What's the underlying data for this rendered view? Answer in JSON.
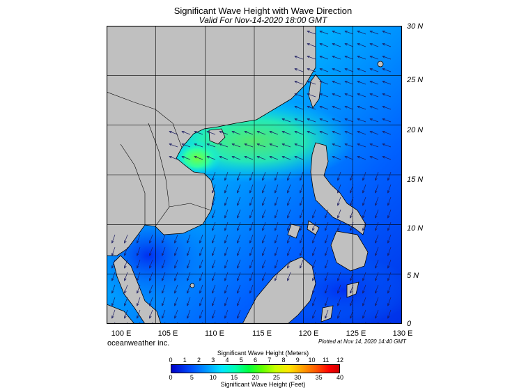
{
  "title": "Significant Wave Height with Wave Direction",
  "subtitle": "Valid For Nov-14-2020 18:00 GMT",
  "credit": "oceanweather inc.",
  "plotted": "Plotted at Nov 14, 2020 14:40 GMT",
  "lat_labels": [
    "30 N",
    "25 N",
    "20 N",
    "15 N",
    "10 N",
    "5 N",
    "0"
  ],
  "lon_labels": [
    "100 E",
    "105 E",
    "110 E",
    "115 E",
    "120 E",
    "125 E",
    "130 E"
  ],
  "colorbar": {
    "meters_label": "Significant Wave Height (Meters)",
    "feet_label": "Significant Wave Height (Feet)",
    "meters_ticks": [
      "0",
      "1",
      "2",
      "3",
      "4",
      "5",
      "6",
      "7",
      "8",
      "9",
      "10",
      "11",
      "12"
    ],
    "feet_ticks": [
      "0",
      "5",
      "10",
      "15",
      "20",
      "25",
      "30",
      "35",
      "40"
    ]
  },
  "colors": {
    "land": "#c0c0c0",
    "sea_low": "#0020e0",
    "sea_mid": "#00b0ff",
    "sea_high": "#30ff90",
    "peak": "#80ff30"
  }
}
